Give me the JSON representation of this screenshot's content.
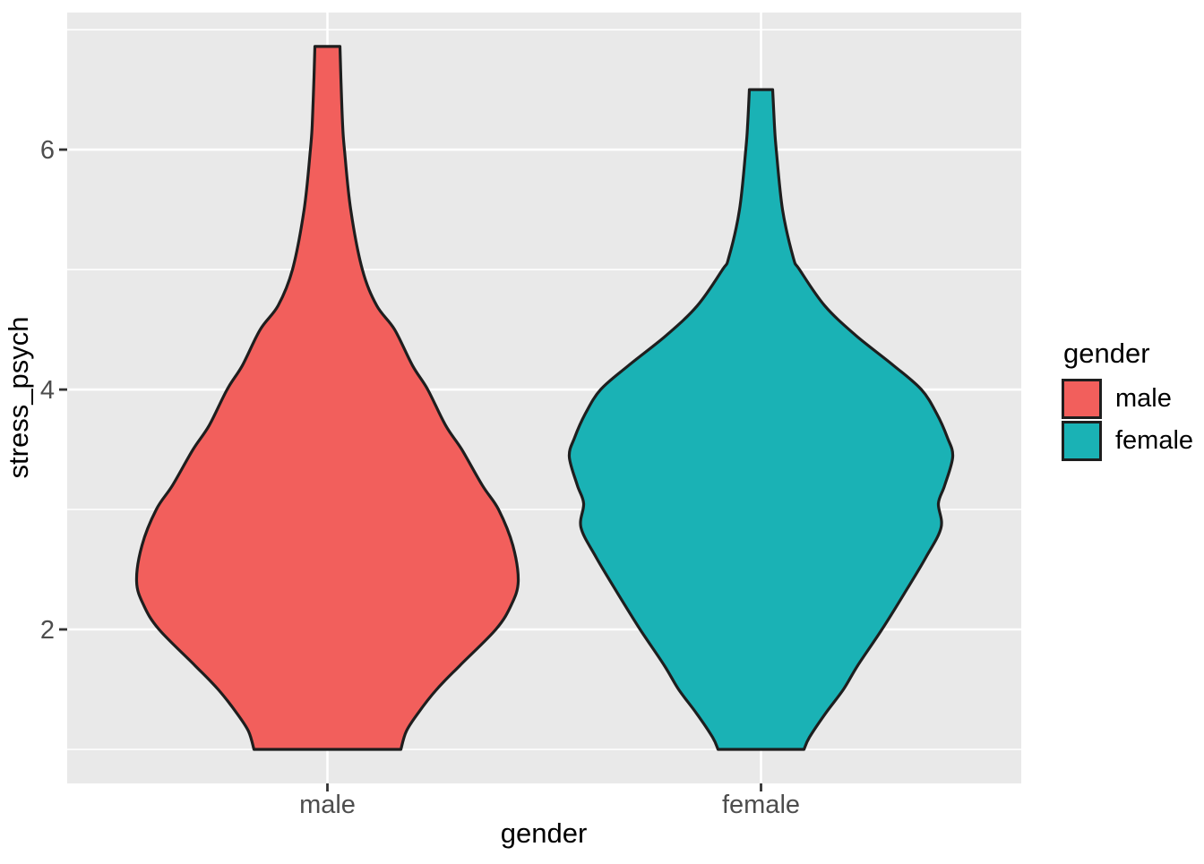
{
  "chart_data": {
    "type": "violin",
    "title": "",
    "xlabel": "gender",
    "ylabel": "stress_psych",
    "categories": [
      "male",
      "female"
    ],
    "x_tick_labels": [
      "male",
      "female"
    ],
    "y_tick_labels": [
      "2",
      "4",
      "6"
    ],
    "y_major_breaks": [
      2,
      4,
      6
    ],
    "y_minor_breaks": [
      1,
      3,
      5,
      7
    ],
    "ylim": [
      0.716,
      7.143
    ],
    "x_domain": [
      0.4,
      2.6
    ],
    "grid": true,
    "legend": {
      "title": "gender",
      "position": "right",
      "entries": [
        {
          "label": "male",
          "color": "#F25F5C"
        },
        {
          "label": "female",
          "color": "#1AB2B5"
        }
      ]
    },
    "series": [
      {
        "name": "male",
        "x": 1,
        "fill": "#F25F5C",
        "min": 1.0,
        "max": 6.86,
        "profile_value_halfwidth": [
          [
            6.86,
            14
          ],
          [
            6.6,
            15
          ],
          [
            6.2,
            17
          ],
          [
            6.0,
            19
          ],
          [
            5.5,
            26
          ],
          [
            5.0,
            39
          ],
          [
            4.7,
            55
          ],
          [
            4.5,
            75
          ],
          [
            4.2,
            95
          ],
          [
            4.0,
            112
          ],
          [
            3.7,
            132
          ],
          [
            3.5,
            150
          ],
          [
            3.2,
            173
          ],
          [
            3.0,
            191
          ],
          [
            2.7,
            207
          ],
          [
            2.4,
            213
          ],
          [
            2.2,
            205
          ],
          [
            2.0,
            188
          ],
          [
            1.7,
            148
          ],
          [
            1.5,
            122
          ],
          [
            1.3,
            101
          ],
          [
            1.15,
            88
          ],
          [
            1.0,
            82
          ]
        ]
      },
      {
        "name": "female",
        "x": 2,
        "fill": "#1AB2B5",
        "min": 1.0,
        "max": 6.5,
        "profile_value_halfwidth": [
          [
            6.5,
            13
          ],
          [
            6.2,
            15
          ],
          [
            6.0,
            17
          ],
          [
            5.5,
            24
          ],
          [
            5.1,
            36
          ],
          [
            5.0,
            43
          ],
          [
            4.7,
            71
          ],
          [
            4.45,
            106
          ],
          [
            4.2,
            148
          ],
          [
            4.0,
            179
          ],
          [
            3.8,
            196
          ],
          [
            3.6,
            208
          ],
          [
            3.44,
            214
          ],
          [
            3.2,
            205
          ],
          [
            3.05,
            198
          ],
          [
            2.85,
            201
          ],
          [
            2.6,
            184
          ],
          [
            2.3,
            160
          ],
          [
            2.0,
            135
          ],
          [
            1.7,
            108
          ],
          [
            1.5,
            92
          ],
          [
            1.3,
            72
          ],
          [
            1.1,
            54
          ],
          [
            1.0,
            48
          ]
        ]
      }
    ],
    "outline_color": "#1E1E1E",
    "panel_background": "#E9E9E9",
    "gridline_color": "#FFFFFF",
    "tick_mark_color": "#333333",
    "axis_text_color": "#4D4D4D",
    "title_text_color": "#000000"
  }
}
